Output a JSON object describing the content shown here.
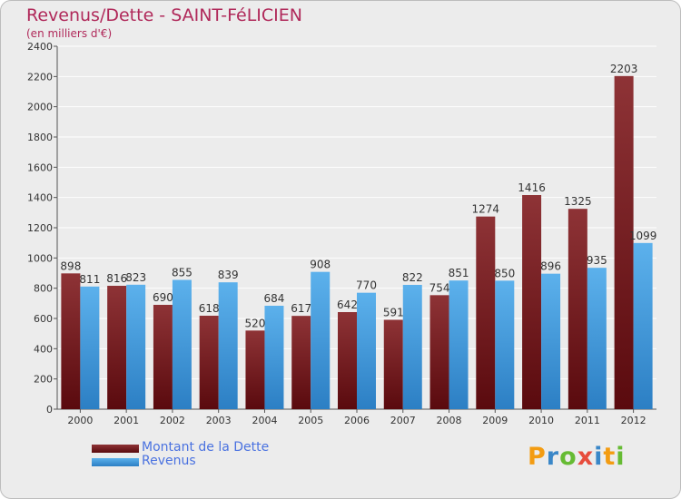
{
  "title": "Revenus/Dette - SAINT-FéLICIEN",
  "subtitle": "(en milliers d'€)",
  "brand": {
    "letters": [
      "P",
      "r",
      "o",
      "x",
      "i",
      "t",
      "i"
    ],
    "colors": [
      "#f39c12",
      "#3a87c8",
      "#66bb33",
      "#e74c3c",
      "#3a87c8",
      "#f39c12",
      "#66bb33"
    ]
  },
  "colors": {
    "dette": "#7a2226",
    "revenus": "#4da3e3",
    "title": "#b0295a",
    "legend_text": "#4a72e0"
  },
  "legend": [
    {
      "label": "Montant de la Dette",
      "color": "#7a2226"
    },
    {
      "label": "Revenus",
      "color": "#4da3e3"
    }
  ],
  "chart_data": {
    "type": "bar",
    "title": "Revenus/Dette - SAINT-FéLICIEN",
    "ylabel": "(en milliers d'€)",
    "categories": [
      "2000",
      "2001",
      "2002",
      "2003",
      "2004",
      "2005",
      "2006",
      "2007",
      "2008",
      "2009",
      "2010",
      "2011",
      "2012"
    ],
    "series": [
      {
        "name": "Montant de la Dette",
        "values": [
          898,
          816,
          690,
          618,
          520,
          617,
          642,
          591,
          754,
          1274,
          1416,
          1325,
          2203
        ]
      },
      {
        "name": "Revenus",
        "values": [
          811,
          823,
          855,
          839,
          684,
          908,
          770,
          822,
          851,
          850,
          896,
          935,
          1099
        ]
      }
    ],
    "ylim": [
      0,
      2400
    ],
    "yticks": [
      0,
      200,
      400,
      600,
      800,
      1000,
      1200,
      1400,
      1600,
      1800,
      2000,
      2200,
      2400
    ],
    "grid": true,
    "legend_position": "bottom-left"
  }
}
